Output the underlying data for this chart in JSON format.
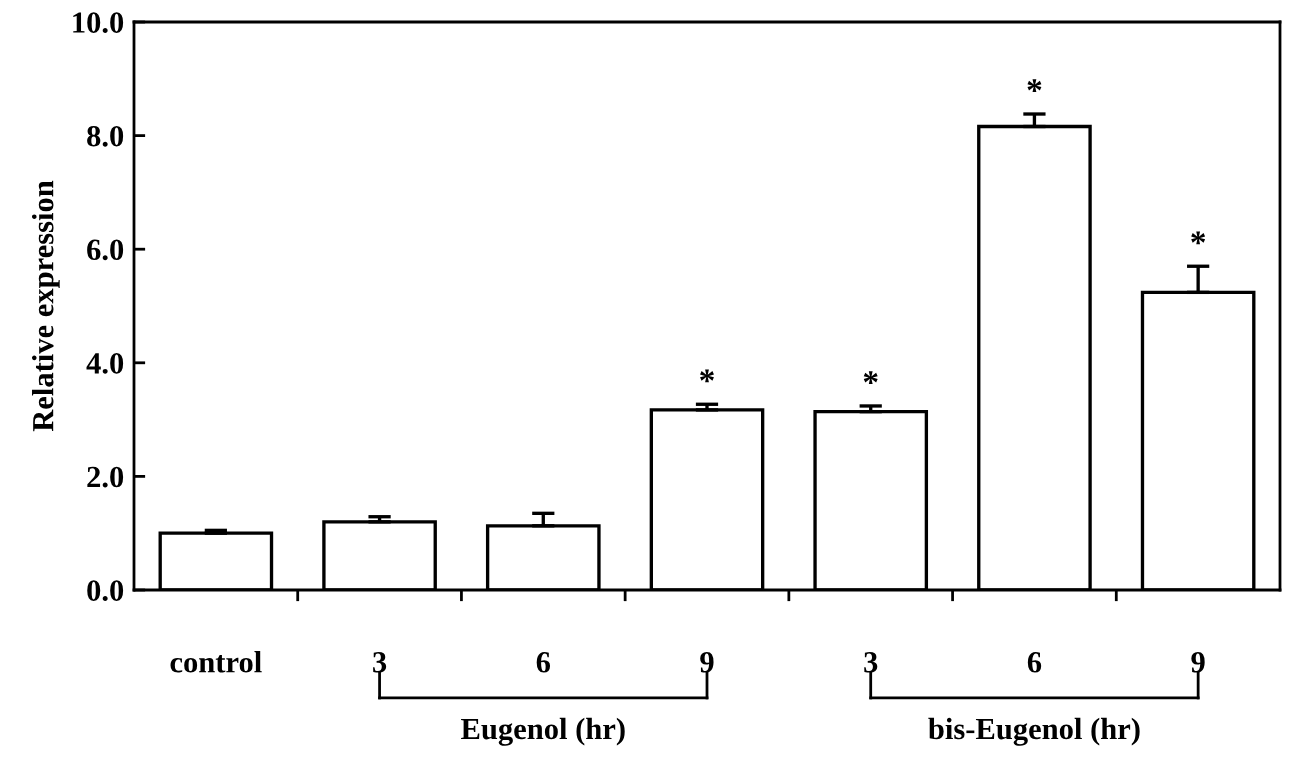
{
  "chart_data": {
    "type": "bar",
    "ylabel": "Relative expression",
    "categories": [
      "control",
      "3",
      "6",
      "9",
      "3",
      "6",
      "9"
    ],
    "values": [
      1.0,
      1.2,
      1.13,
      3.17,
      3.14,
      8.16,
      5.24
    ],
    "errors": [
      0.05,
      0.09,
      0.22,
      0.1,
      0.1,
      0.22,
      0.46
    ],
    "value_labels": [
      null,
      null,
      null,
      "*",
      "*",
      "*",
      "*"
    ],
    "color": "#ffffff",
    "ylim": [
      0,
      10
    ],
    "yticks": [
      {
        "value": 0,
        "label": "0.0"
      },
      {
        "value": 2,
        "label": "2.0"
      },
      {
        "value": 4,
        "label": "4.0"
      },
      {
        "value": 6,
        "label": "6.0"
      },
      {
        "value": 8,
        "label": "8.0"
      },
      {
        "value": 10,
        "label": "10.0"
      }
    ],
    "annotations": [
      "Eugenol (hr)",
      "bis-Eugenol (hr)"
    ],
    "grid": false,
    "legend": false
  }
}
